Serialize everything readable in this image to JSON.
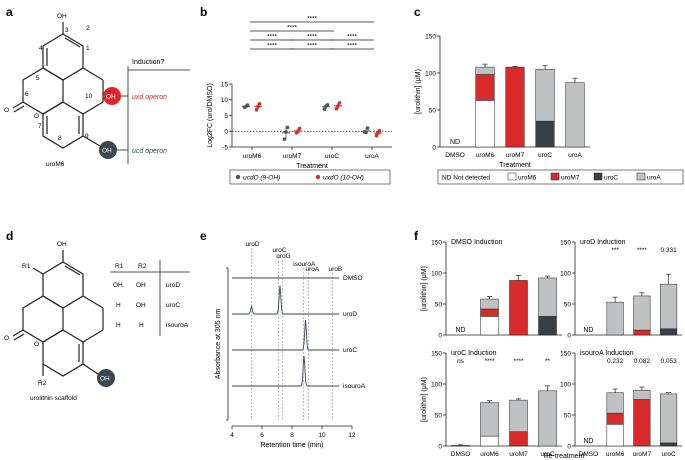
{
  "panel_labels": [
    "a",
    "b",
    "c",
    "d",
    "e",
    "f"
  ],
  "panel_a": {
    "caption": "uroM6",
    "atoms": {
      "oh_top": "OH",
      "oh_red": "OH",
      "oh_dark": "OH"
    },
    "numbers": [
      "1",
      "2",
      "3",
      "4",
      "5",
      "6",
      "7",
      "8",
      "9",
      "10"
    ],
    "induction_header": "Induction?",
    "operon_red": "uxd operon",
    "operon_dark": "ucd operon"
  },
  "panel_d": {
    "caption": "urolithin scaffold",
    "atoms": {
      "oh_top": "OH",
      "r1": "R1",
      "r2": "R2",
      "oh_dark": "OH"
    },
    "table_header": [
      "R1",
      "R2"
    ],
    "rows": [
      {
        "r1": "OH",
        "r2": "OH",
        "name": "uroD"
      },
      {
        "r1": "H",
        "r2": "OH",
        "name": "uroC"
      },
      {
        "r1": "H",
        "r2": "H",
        "name": "isouroA"
      }
    ]
  },
  "chart_data": [
    {
      "panel": "b",
      "type": "scatter",
      "ylabel": "Log2FC (uro/DMSO)",
      "xlabel": "Treatment",
      "categories": [
        "uroM6",
        "uroM7",
        "uroC",
        "uroA"
      ],
      "ylim": [
        -5,
        15
      ],
      "yticks": [
        -5,
        0,
        5,
        10,
        15
      ],
      "series": [
        {
          "name": "ucdO (9-OH)",
          "color": "#555555",
          "points": [
            [
              7.6,
              7.9,
              8.3
            ],
            [
              -2.5,
              -0.2,
              1.2
            ],
            [
              7.0,
              8.0,
              8.4
            ],
            [
              -0.2,
              -0.4,
              1.0
            ]
          ],
          "means": [
            7.9,
            -0.5,
            7.8,
            0.1
          ]
        },
        {
          "name": "uxdO (10-OH)",
          "color": "#d92b2b",
          "points": [
            [
              6.8,
              7.8,
              8.7
            ],
            [
              -0.5,
              0.0,
              0.9
            ],
            [
              7.2,
              8.0,
              9.0
            ],
            [
              -1.4,
              -0.5,
              0.2
            ]
          ],
          "means": [
            7.8,
            0.1,
            8.1,
            -0.6
          ]
        }
      ],
      "significance": [
        {
          "from": 0,
          "to": 3,
          "label": "****"
        },
        {
          "from": 0,
          "to": 2,
          "label": "****"
        },
        {
          "from": 0,
          "to": 1,
          "label": "****"
        },
        {
          "from": 1,
          "to": 2,
          "label": "****"
        },
        {
          "from": 2,
          "to": 3,
          "label": "****"
        },
        {
          "from": 0,
          "to": 1,
          "label": "****"
        },
        {
          "from": 1,
          "to": 2,
          "label": "****"
        },
        {
          "from": 2,
          "to": 3,
          "label": "****"
        }
      ]
    },
    {
      "panel": "c",
      "type": "bar",
      "ylabel": "[urolithin] (μM)",
      "xlabel": "Treatment",
      "categories": [
        "DMSO",
        "uroM6",
        "uroM7",
        "uroC",
        "uroA"
      ],
      "ylim": [
        0,
        150
      ],
      "yticks": [
        0,
        50,
        100,
        150
      ],
      "stacks": [
        {
          "nd": true,
          "segments": []
        },
        {
          "segments": [
            {
              "c": "uroM6",
              "v": 63
            },
            {
              "c": "uroM7",
              "v": 35
            },
            {
              "c": "uroA",
              "v": 10
            }
          ]
        },
        {
          "segments": [
            {
              "c": "uroM7",
              "v": 108
            }
          ]
        },
        {
          "segments": [
            {
              "c": "uroC",
              "v": 35
            },
            {
              "c": "uroA",
              "v": 70
            }
          ]
        },
        {
          "segments": [
            {
              "c": "uroA",
              "v": 87
            }
          ]
        }
      ],
      "errors": [
        null,
        4,
        1,
        5,
        6
      ],
      "nd_label": "ND"
    },
    {
      "panel": "e",
      "type": "line",
      "ylabel": "Absorbance at 305 nm",
      "xlabel": "Retention time (min)",
      "xlim": [
        4,
        12
      ],
      "xticks": [
        4,
        6,
        8,
        10,
        12
      ],
      "traces": [
        "DMSO",
        "uroD",
        "uroC",
        "isouroA"
      ],
      "peaks": {
        "DMSO": [],
        "uroD": [
          [
            5.3,
            0.25
          ],
          [
            7.2,
            0.95
          ]
        ],
        "uroC": [
          [
            8.9,
            1.0
          ]
        ],
        "isouroA": [
          [
            8.8,
            1.0
          ]
        ]
      },
      "markers": [
        {
          "label": "uroD",
          "x": 5.3
        },
        {
          "label": "uroC",
          "x": 7.1
        },
        {
          "label": "uroG",
          "x": 7.35
        },
        {
          "label": "isouroA",
          "x": 8.75
        },
        {
          "label": "uroA",
          "x": 9.1
        },
        {
          "label": "uroB",
          "x": 10.7
        }
      ]
    },
    {
      "panel": "f",
      "type": "bar",
      "ylabel": "[urolithin] (μM)",
      "xlabel": "Re-treatment",
      "categories": [
        "DMSO",
        "uroM6",
        "uroM7",
        "uroC"
      ],
      "ylim": [
        0,
        150
      ],
      "yticks": [
        0,
        50,
        100,
        150
      ],
      "subplots": [
        {
          "title": "DMSO Induction",
          "stacks": [
            {
              "nd": true,
              "segments": []
            },
            {
              "segments": [
                {
                  "c": "uroM6",
                  "v": 30
                },
                {
                  "c": "uroM7",
                  "v": 12
                },
                {
                  "c": "uroA",
                  "v": 16
                }
              ]
            },
            {
              "segments": [
                {
                  "c": "uroM7",
                  "v": 88
                }
              ]
            },
            {
              "segments": [
                {
                  "c": "uroC",
                  "v": 30
                },
                {
                  "c": "uroA",
                  "v": 62
                }
              ]
            }
          ],
          "errors": [
            null,
            4,
            8,
            3
          ],
          "sig": [
            "",
            "",
            "",
            ""
          ]
        },
        {
          "title": "uroD Induction",
          "stacks": [
            {
              "nd": true,
              "segments": []
            },
            {
              "segments": [
                {
                  "c": "uroA",
                  "v": 53
                }
              ]
            },
            {
              "segments": [
                {
                  "c": "uroM7",
                  "v": 8
                },
                {
                  "c": "uroA",
                  "v": 55
                }
              ]
            },
            {
              "segments": [
                {
                  "c": "uroC",
                  "v": 10
                },
                {
                  "c": "uroA",
                  "v": 72
                }
              ]
            }
          ],
          "errors": [
            null,
            8,
            5,
            16
          ],
          "sig": [
            "",
            "***",
            "****",
            "0.331"
          ]
        },
        {
          "title": "uroC Induction",
          "stacks": [
            {
              "segments": [
                {
                  "c": "uroA",
                  "v": 1
                }
              ]
            },
            {
              "segments": [
                {
                  "c": "uroM6",
                  "v": 16
                },
                {
                  "c": "uroA",
                  "v": 54
                }
              ]
            },
            {
              "segments": [
                {
                  "c": "uroM7",
                  "v": 23
                },
                {
                  "c": "uroA",
                  "v": 51
                }
              ]
            },
            {
              "segments": [
                {
                  "c": "uroA",
                  "v": 89
                }
              ]
            }
          ],
          "errors": [
            1,
            3,
            2,
            8
          ],
          "sig": [
            "ns",
            "****",
            "****",
            "**"
          ]
        },
        {
          "title": "isouroA Induction",
          "stacks": [
            {
              "nd": true,
              "segments": []
            },
            {
              "segments": [
                {
                  "c": "uroM6",
                  "v": 35
                },
                {
                  "c": "uroM7",
                  "v": 18
                },
                {
                  "c": "uroA",
                  "v": 33
                }
              ]
            },
            {
              "segments": [
                {
                  "c": "uroM7",
                  "v": 75
                },
                {
                  "c": "uroA",
                  "v": 15
                }
              ]
            },
            {
              "segments": [
                {
                  "c": "uroC",
                  "v": 5
                },
                {
                  "c": "uroA",
                  "v": 79
                }
              ]
            }
          ],
          "errors": [
            null,
            6,
            5,
            2
          ],
          "sig": [
            "",
            "0.232",
            "0.082",
            "0.053"
          ]
        }
      ],
      "nd_label": "ND"
    }
  ],
  "legend_b": [
    {
      "name": "ucdO (9-OH)",
      "color": "#555555"
    },
    {
      "name": "uxdO (10-OH)",
      "color": "#d92b2b"
    }
  ],
  "legend_cf": {
    "nd_text": "ND  Not detected",
    "items": [
      {
        "name": "uroM6",
        "color": "#ffffff"
      },
      {
        "name": "uroM7",
        "color": "#d92b2b"
      },
      {
        "name": "uroC",
        "color": "#3b3f44"
      },
      {
        "name": "uroA",
        "color": "#bfc1c3"
      }
    ]
  },
  "colors": {
    "uroM6": "#ffffff",
    "uroM7": "#d92b2b",
    "uroC": "#3b3f44",
    "uroA": "#bfc1c3",
    "dark": "#3b4650",
    "red": "#e02626"
  }
}
